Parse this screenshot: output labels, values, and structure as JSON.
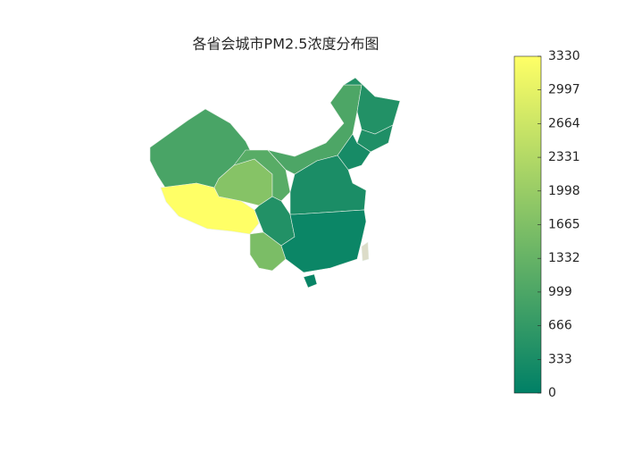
{
  "chart_data": {
    "type": "choropleth",
    "title": "各省会城市PM2.5浓度分布图",
    "values": [
      950,
      3330,
      1750,
      1150,
      1000,
      450,
      400,
      300,
      450,
      1600,
      350,
      150,
      100,
      null
    ],
    "colormap": [
      "#008066",
      "#ffff66"
    ],
    "missing_color": "#dcdcc8",
    "clim": [
      0,
      3330
    ],
    "colorbar_ticks": [
      0,
      333,
      666,
      999,
      1332,
      1665,
      1998,
      2331,
      2664,
      2997,
      3330
    ]
  }
}
